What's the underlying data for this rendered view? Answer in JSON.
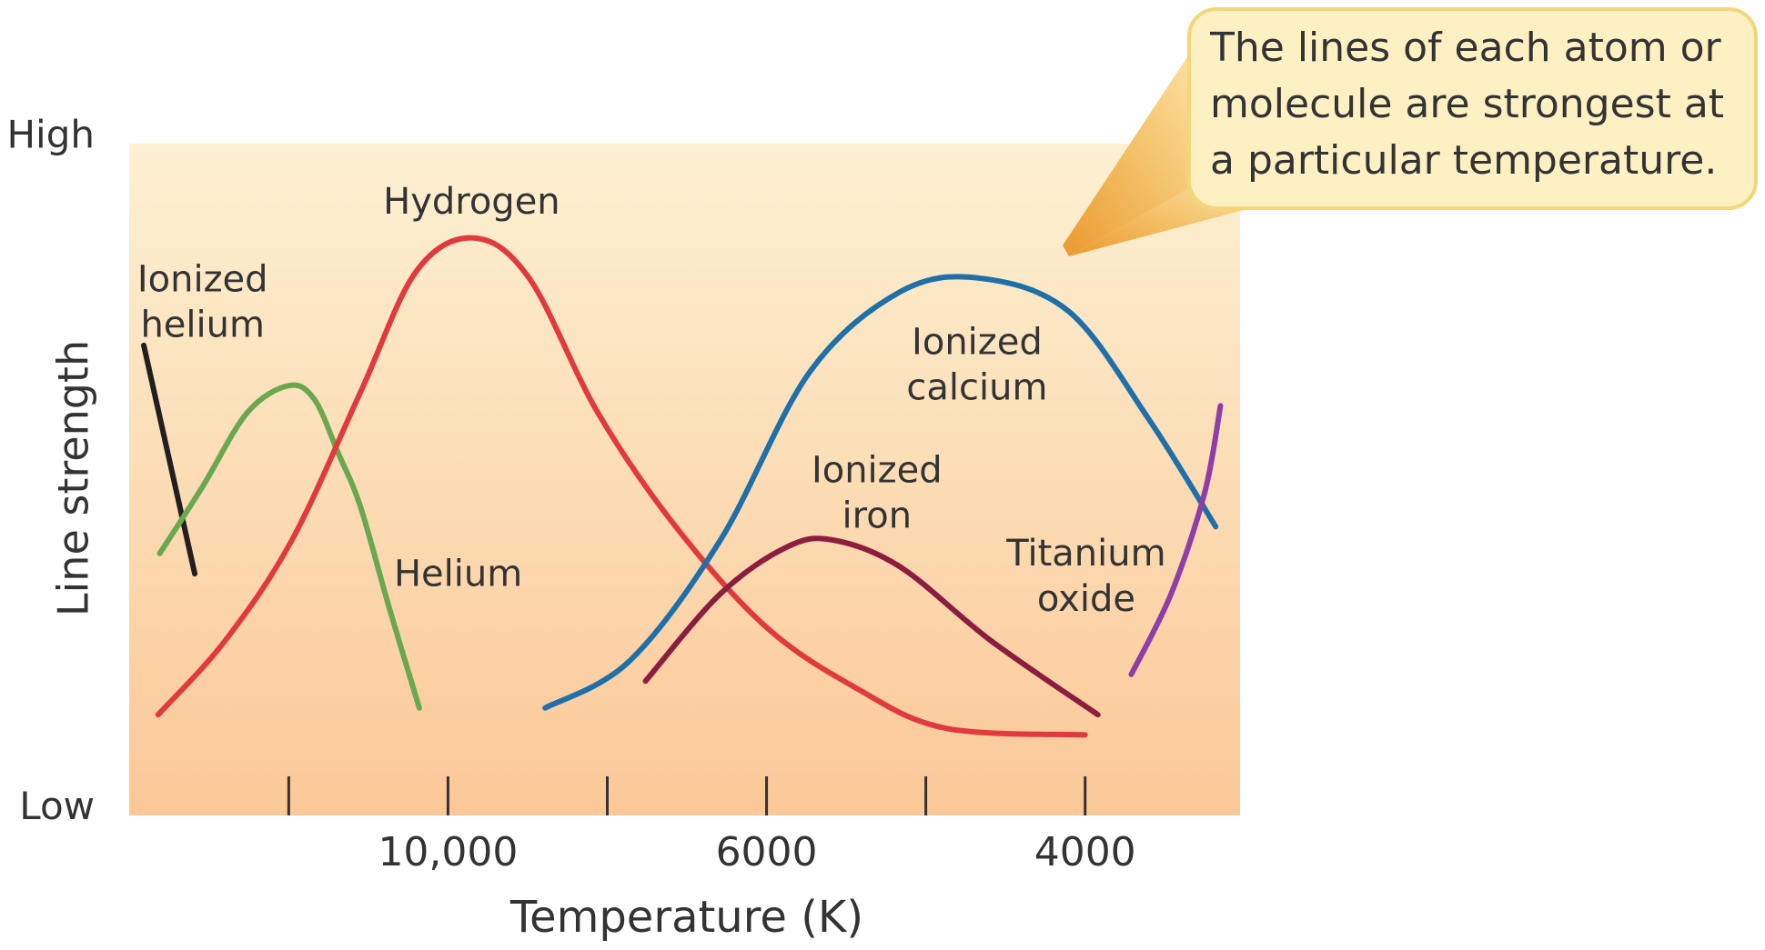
{
  "chart_data": {
    "type": "line",
    "xlabel": "Temperature (K)",
    "ylabel": "Line strength",
    "annotation": "The lines of each atom or molecule are strongest at a particular temperature.",
    "xlim": [
      0,
      7
    ],
    "xticks": [
      1,
      {
        "value": 2,
        "label": "10,000"
      },
      3,
      {
        "value": 4,
        "label": "6000"
      },
      5,
      {
        "value": 6,
        "label": "4000"
      }
    ],
    "ylim": [
      0,
      1
    ],
    "yticks": [
      {
        "value": 0,
        "label": "Low"
      },
      {
        "value": 1,
        "label": "High"
      }
    ],
    "series": [
      {
        "name": "Ionized helium",
        "color": "#231f20",
        "x": [
          0.09,
          0.41
        ],
        "values": [
          0.69,
          0.35
        ]
      },
      {
        "name": "Helium",
        "color": "#6aa84f",
        "x": [
          0.19,
          0.46,
          0.74,
          1.0,
          1.16,
          1.31,
          1.45,
          1.63,
          1.82
        ],
        "values": [
          0.38,
          0.48,
          0.59,
          0.63,
          0.61,
          0.53,
          0.45,
          0.3,
          0.15
        ]
      },
      {
        "name": "Hydrogen",
        "color": "#e0393e",
        "x": [
          0.18,
          0.6,
          1.02,
          1.45,
          1.8,
          2.16,
          2.51,
          2.94,
          3.43,
          4.0,
          4.56,
          5.12,
          6.0
        ],
        "values": [
          0.14,
          0.25,
          0.4,
          0.62,
          0.8,
          0.85,
          0.79,
          0.59,
          0.42,
          0.27,
          0.18,
          0.12,
          0.11
        ]
      },
      {
        "name": "Ionized calcium",
        "color": "#1f6fa8",
        "x": [
          2.61,
          3.14,
          3.71,
          4.27,
          4.84,
          5.34,
          5.9,
          6.4,
          6.82
        ],
        "values": [
          0.15,
          0.22,
          0.4,
          0.65,
          0.77,
          0.79,
          0.74,
          0.58,
          0.42
        ]
      },
      {
        "name": "Ionized iron",
        "color": "#8b1e3f",
        "x": [
          3.24,
          3.71,
          4.13,
          4.42,
          4.84,
          5.41,
          6.08
        ],
        "values": [
          0.19,
          0.32,
          0.39,
          0.4,
          0.36,
          0.25,
          0.14
        ]
      },
      {
        "name": "Titanium oxide",
        "color": "#8e3ea6",
        "x": [
          6.29,
          6.54,
          6.75,
          6.85
        ],
        "values": [
          0.2,
          0.32,
          0.47,
          0.6
        ]
      }
    ]
  }
}
